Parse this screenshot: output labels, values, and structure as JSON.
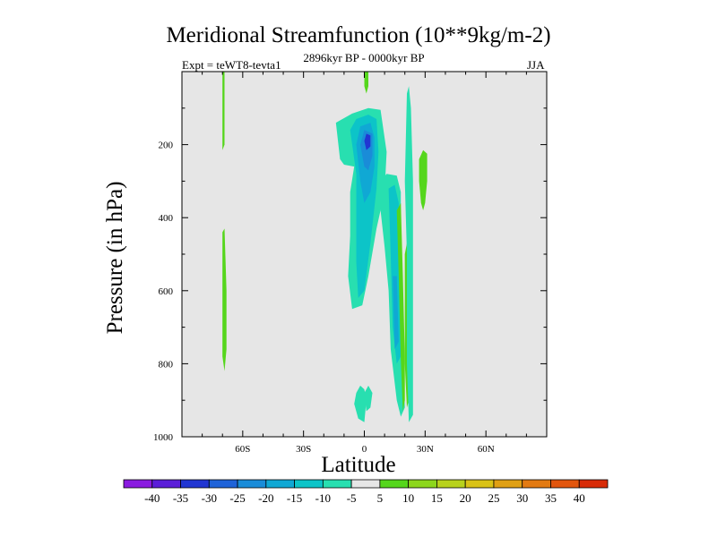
{
  "chart_data": {
    "type": "contour",
    "title": "Meridional Streamfunction (10**9kg/m-2)",
    "subtitle": "2896kyr BP - 0000kyr BP",
    "left_label": "Expt = teWT8-tevta1",
    "right_label": "JJA",
    "xlabel": "Latitude",
    "ylabel": "Pressure (in hPa)",
    "xlim": [
      -90,
      90
    ],
    "ylim": [
      1000,
      0
    ],
    "x_ticks": [
      {
        "value": -60,
        "label": "60S"
      },
      {
        "value": -30,
        "label": "30S"
      },
      {
        "value": 0,
        "label": "0"
      },
      {
        "value": 30,
        "label": "30N"
      },
      {
        "value": 60,
        "label": "60N"
      }
    ],
    "y_ticks": [
      {
        "value": 200,
        "label": "200"
      },
      {
        "value": 400,
        "label": "400"
      },
      {
        "value": 600,
        "label": "600"
      },
      {
        "value": 800,
        "label": "800"
      },
      {
        "value": 1000,
        "label": "1000"
      }
    ],
    "background_color": "#e6e6e6",
    "colorbar": {
      "labels": [
        "-40",
        "-35",
        "-30",
        "-25",
        "-20",
        "-15",
        "-10",
        "-5",
        "5",
        "10",
        "15",
        "20",
        "25",
        "30",
        "35",
        "40"
      ],
      "colors": [
        "#8a1be0",
        "#5b1ed8",
        "#2136d2",
        "#1f63d8",
        "#1a8cd8",
        "#10a8d4",
        "#0cc4c8",
        "#28dfb0",
        "#e6e6e6",
        "#55d61c",
        "#8cd61c",
        "#b8d21c",
        "#d9c216",
        "#e0a014",
        "#e27a12",
        "#e2560e",
        "#d82c08"
      ]
    },
    "regions": [
      {
        "name": "negative-core-cell",
        "level": "-5",
        "color": "#28dfb0",
        "points": [
          [
            -12,
            240
          ],
          [
            -14,
            140
          ],
          [
            -6,
            115
          ],
          [
            2,
            100
          ],
          [
            8,
            105
          ],
          [
            11,
            220
          ],
          [
            10,
            330
          ],
          [
            6,
            430
          ],
          [
            2,
            560
          ],
          [
            -1,
            640
          ],
          [
            -6,
            650
          ],
          [
            -8,
            560
          ],
          [
            -7,
            450
          ],
          [
            -7,
            330
          ],
          [
            -5,
            260
          ],
          [
            -10,
            255
          ]
        ]
      },
      {
        "name": "negative-inner-10",
        "level": "-10",
        "color": "#0cc4c8",
        "points": [
          [
            -7,
            160
          ],
          [
            -4,
            130
          ],
          [
            2,
            118
          ],
          [
            6,
            130
          ],
          [
            7,
            220
          ],
          [
            6,
            320
          ],
          [
            3,
            470
          ],
          [
            0,
            600
          ],
          [
            -3,
            620
          ],
          [
            -4,
            520
          ],
          [
            -4,
            400
          ],
          [
            -4,
            280
          ]
        ]
      },
      {
        "name": "negative-inner-15",
        "level": "-15",
        "color": "#10a8d4",
        "points": [
          [
            -4,
            200
          ],
          [
            -2,
            150
          ],
          [
            3,
            140
          ],
          [
            5,
            180
          ],
          [
            5,
            260
          ],
          [
            3,
            330
          ],
          [
            0,
            360
          ],
          [
            -2,
            300
          ]
        ]
      },
      {
        "name": "negative-inner-20",
        "level": "-20",
        "color": "#1a8cd8",
        "points": [
          [
            -2,
            200
          ],
          [
            0,
            160
          ],
          [
            4,
            170
          ],
          [
            4,
            230
          ],
          [
            2,
            270
          ],
          [
            0,
            260
          ]
        ]
      },
      {
        "name": "negative-core-max",
        "level": "-30",
        "color": "#2136d2",
        "points": [
          [
            0,
            190
          ],
          [
            1,
            170
          ],
          [
            3,
            175
          ],
          [
            3,
            205
          ],
          [
            1,
            215
          ]
        ]
      },
      {
        "name": "negative-surface-cell-1",
        "level": "-5",
        "color": "#28dfb0",
        "points": [
          [
            -5,
            910
          ],
          [
            -4,
            880
          ],
          [
            -2,
            860
          ],
          [
            0,
            870
          ],
          [
            1,
            900
          ],
          [
            0,
            960
          ],
          [
            -3,
            950
          ]
        ]
      },
      {
        "name": "negative-surface-cell-2",
        "level": "-5",
        "color": "#28dfb0",
        "points": [
          [
            0,
            880
          ],
          [
            2,
            860
          ],
          [
            4,
            880
          ],
          [
            3,
            920
          ],
          [
            1,
            930
          ]
        ]
      },
      {
        "name": "negative-rising-branch",
        "level": "-5",
        "color": "#28dfb0",
        "points": [
          [
            8,
            300
          ],
          [
            11,
            280
          ],
          [
            16,
            285
          ],
          [
            18,
            330
          ],
          [
            18,
            560
          ],
          [
            19,
            780
          ],
          [
            20,
            920
          ],
          [
            18,
            945
          ],
          [
            16,
            900
          ],
          [
            13,
            760
          ],
          [
            12,
            600
          ],
          [
            10,
            480
          ],
          [
            8,
            380
          ]
        ]
      },
      {
        "name": "negative-rising-branch-inner",
        "level": "-10",
        "color": "#0cc4c8",
        "points": [
          [
            12,
            320
          ],
          [
            15,
            310
          ],
          [
            17,
            360
          ],
          [
            17,
            560
          ],
          [
            18,
            780
          ],
          [
            16,
            800
          ],
          [
            14,
            700
          ],
          [
            13,
            500
          ]
        ]
      },
      {
        "name": "negative-rising-branch-low",
        "level": "-15",
        "color": "#10a8d4",
        "points": [
          [
            14,
            560
          ],
          [
            16,
            560
          ],
          [
            17,
            740
          ],
          [
            15,
            760
          ]
        ]
      },
      {
        "name": "positive-cell-30n",
        "level": "10",
        "color": "#55d61c",
        "points": [
          [
            27,
            240
          ],
          [
            29,
            215
          ],
          [
            31,
            225
          ],
          [
            31,
            300
          ],
          [
            30,
            360
          ],
          [
            29,
            380
          ],
          [
            28,
            360
          ],
          [
            27,
            300
          ]
        ]
      },
      {
        "name": "positive-cell-60s-upper",
        "level": "5",
        "color": "#55d61c",
        "points": [
          [
            -70,
            0
          ],
          [
            -69,
            0
          ],
          [
            -69,
            200
          ],
          [
            -70,
            215
          ]
        ]
      },
      {
        "name": "positive-cell-60s-lower",
        "level": "5",
        "color": "#55d61c",
        "points": [
          [
            -70,
            440
          ],
          [
            -69,
            430
          ],
          [
            -68,
            600
          ],
          [
            -68,
            760
          ],
          [
            -69,
            820
          ],
          [
            -70,
            780
          ],
          [
            -70,
            600
          ]
        ]
      },
      {
        "name": "positive-cell-equator-top",
        "level": "5",
        "color": "#55d61c",
        "points": [
          [
            0,
            0
          ],
          [
            2,
            0
          ],
          [
            2,
            40
          ],
          [
            1,
            60
          ],
          [
            0,
            40
          ]
        ]
      },
      {
        "name": "positive-rising-branch",
        "level": "5",
        "color": "#55d61c",
        "points": [
          [
            16,
            380
          ],
          [
            18,
            360
          ],
          [
            19,
            560
          ],
          [
            20,
            780
          ],
          [
            20,
            900
          ],
          [
            19,
            930
          ],
          [
            18,
            790
          ],
          [
            17,
            560
          ]
        ]
      },
      {
        "name": "positive-descending-strip",
        "level": "5",
        "color": "#55d61c",
        "points": [
          [
            20,
            500
          ],
          [
            21,
            470
          ],
          [
            22,
            600
          ],
          [
            22,
            900
          ],
          [
            21,
            920
          ],
          [
            20,
            800
          ]
        ]
      },
      {
        "name": "negative-strip-20n",
        "level": "-5",
        "color": "#28dfb0",
        "points": [
          [
            21,
            60
          ],
          [
            22,
            40
          ],
          [
            23,
            100
          ],
          [
            24,
            300
          ],
          [
            24,
            700
          ],
          [
            24,
            940
          ],
          [
            22,
            960
          ],
          [
            21,
            800
          ],
          [
            21,
            500
          ],
          [
            20,
            300
          ]
        ]
      }
    ]
  }
}
